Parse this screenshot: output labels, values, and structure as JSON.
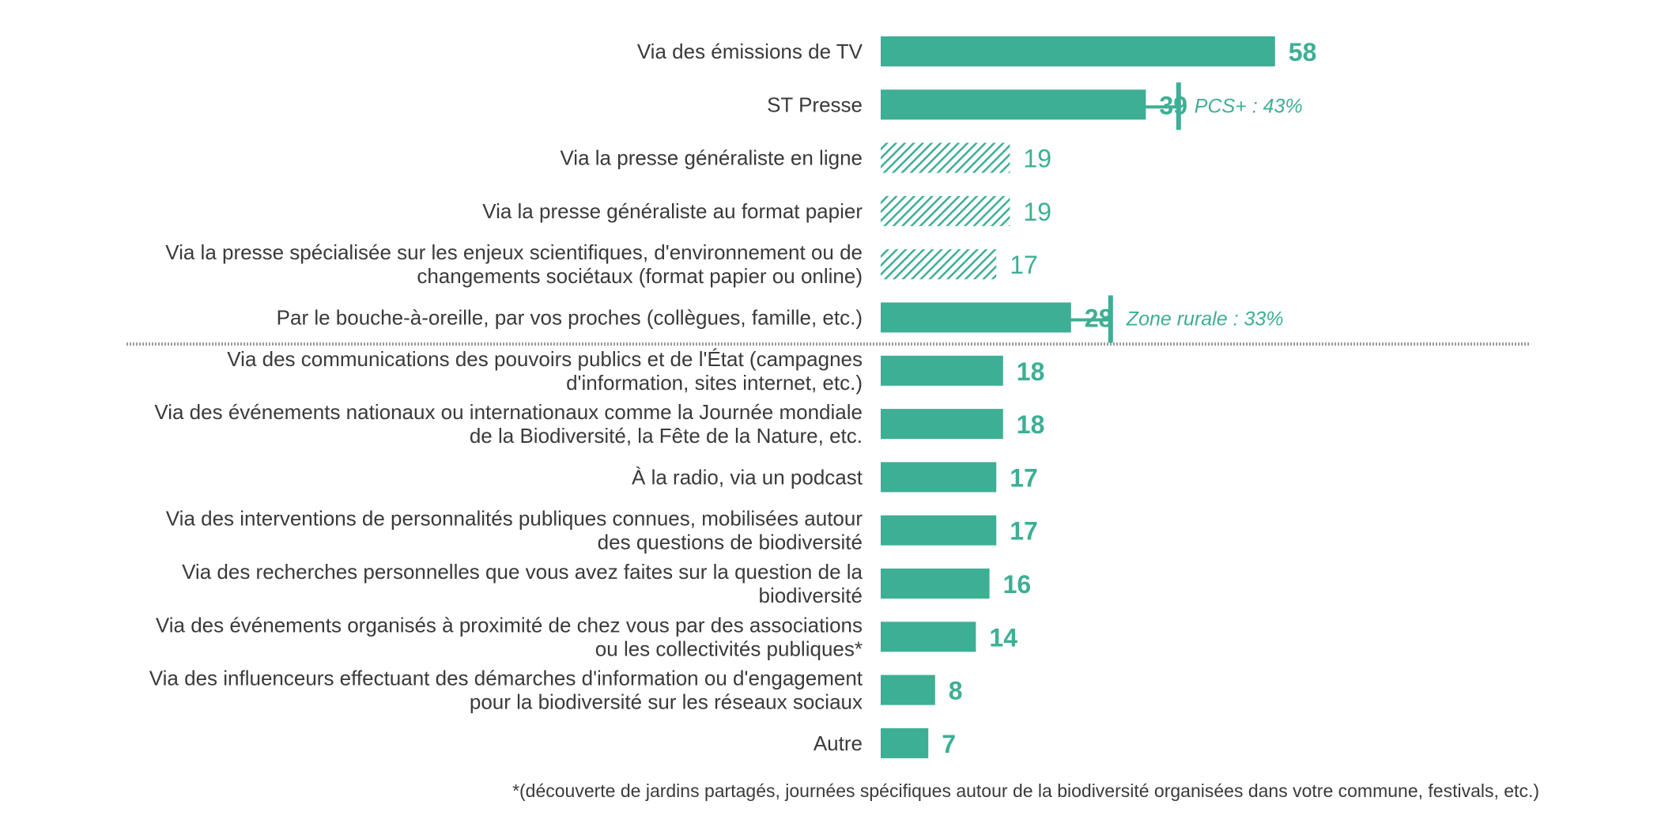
{
  "colors": {
    "bar": "#3daf94",
    "label": "#3a3a3a",
    "separator": "#9a9a9a",
    "background": "#ffffff"
  },
  "chart_data": {
    "type": "bar",
    "orientation": "horizontal",
    "grid": false,
    "legend": "none",
    "xlim": [
      0,
      58
    ],
    "categories": [
      "Via des émissions de TV",
      "ST Presse",
      "Via la presse généraliste en ligne",
      "Via la presse généraliste au format papier",
      "Via la presse spécialisée sur les enjeux scientifiques, d'environnement ou de changements sociétaux (format papier ou online)",
      "Par le bouche-à-oreille, par vos proches (collègues, famille, etc.)",
      "Via des communications des pouvoirs publics et de l'État (campagnes d'information, sites internet, etc.)",
      "Via des événements nationaux ou internationaux comme la Journée mondiale de la Biodiversité, la Fête de la Nature, etc.",
      "À la radio, via un podcast",
      "Via des interventions de personnalités publiques connues, mobilisées autour des questions de biodiversité",
      "Via des recherches personnelles que vous avez faites sur la question de la biodiversité",
      "Via des événements organisés à proximité de chez vous par des associations ou les collectivités publiques*",
      "Via des influenceurs effectuant des démarches d'information ou d'engagement pour la biodiversité sur les réseaux sociaux",
      "Autre"
    ],
    "label_lines": [
      [
        "Via des émissions de TV"
      ],
      [
        "ST Presse"
      ],
      [
        "Via la presse généraliste en ligne"
      ],
      [
        "Via la presse généraliste au format papier"
      ],
      [
        "Via la presse spécialisée sur les enjeux scientifiques, d'environnement ou de",
        "changements sociétaux (format papier ou online)"
      ],
      [
        "Par le bouche-à-oreille, par vos proches (collègues, famille, etc.)"
      ],
      [
        "Via des communications des pouvoirs publics et de l'État (campagnes",
        "d'information, sites internet, etc.)"
      ],
      [
        "Via des événements nationaux ou internationaux comme la Journée mondiale",
        "de la Biodiversité, la Fête de la Nature, etc."
      ],
      [
        "À la radio, via un podcast"
      ],
      [
        "Via des interventions de personnalités publiques connues, mobilisées autour",
        "des questions de biodiversité"
      ],
      [
        "Via des recherches personnelles que vous avez faites sur la question de la",
        "biodiversité"
      ],
      [
        "Via des événements organisés à proximité de chez vous par des associations",
        "ou les collectivités publiques*"
      ],
      [
        "Via des influenceurs effectuant des démarches d'information ou d'engagement",
        "pour la biodiversité sur les réseaux sociaux"
      ],
      [
        "Autre"
      ]
    ],
    "values": [
      58,
      39,
      19,
      19,
      17,
      28,
      18,
      18,
      17,
      17,
      16,
      14,
      8,
      7
    ],
    "value_labels": [
      "58",
      "39",
      "19",
      "19",
      "17",
      "28",
      "18",
      "18",
      "17",
      "17",
      "16",
      "14",
      "8",
      "7"
    ],
    "hatched": [
      false,
      false,
      true,
      true,
      true,
      false,
      false,
      false,
      false,
      false,
      false,
      false,
      false,
      false
    ],
    "separator_after_index": 5,
    "annotations": [
      {
        "row_index": 1,
        "text": "PCS+ : 43%",
        "value": 43
      },
      {
        "row_index": 5,
        "text": "Zone rurale : 33%",
        "value": 33
      }
    ],
    "footnote": "*(découverte de jardins partagés, journées spécifiques autour de la biodiversité organisées dans votre commune, festivals, etc.)"
  }
}
